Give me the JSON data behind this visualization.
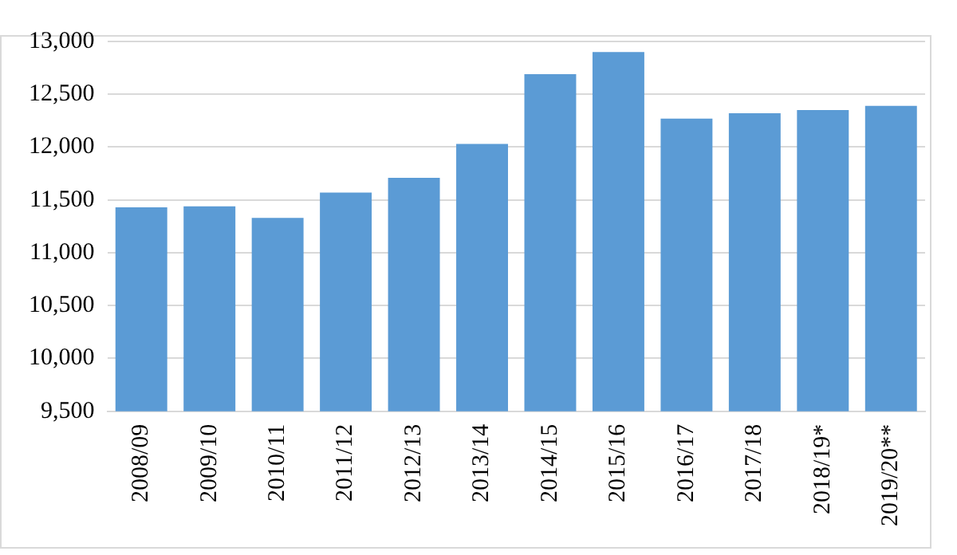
{
  "chart_data": {
    "type": "bar",
    "categories": [
      "2008/09",
      "2009/10",
      "2010/11",
      "2011/12",
      "2012/13",
      "2013/14",
      "2014/15",
      "2015/16",
      "2016/17",
      "2017/18",
      "2018/19*",
      "2019/20**"
    ],
    "values": [
      11430,
      11440,
      11330,
      11570,
      11710,
      12030,
      12690,
      12900,
      12270,
      12320,
      12350,
      12390
    ],
    "color": "#5b9bd5",
    "ylim": [
      9500,
      13000
    ],
    "yticks": [
      {
        "value": 9500,
        "label": "9,500"
      },
      {
        "value": 10000,
        "label": "10,000"
      },
      {
        "value": 10500,
        "label": "10,500"
      },
      {
        "value": 11000,
        "label": "11,000"
      },
      {
        "value": 11500,
        "label": "11,500"
      },
      {
        "value": 12000,
        "label": "12,000"
      },
      {
        "value": 12500,
        "label": "12,500"
      },
      {
        "value": 13000,
        "label": "13,000"
      }
    ],
    "grid": "y",
    "legend": false
  }
}
